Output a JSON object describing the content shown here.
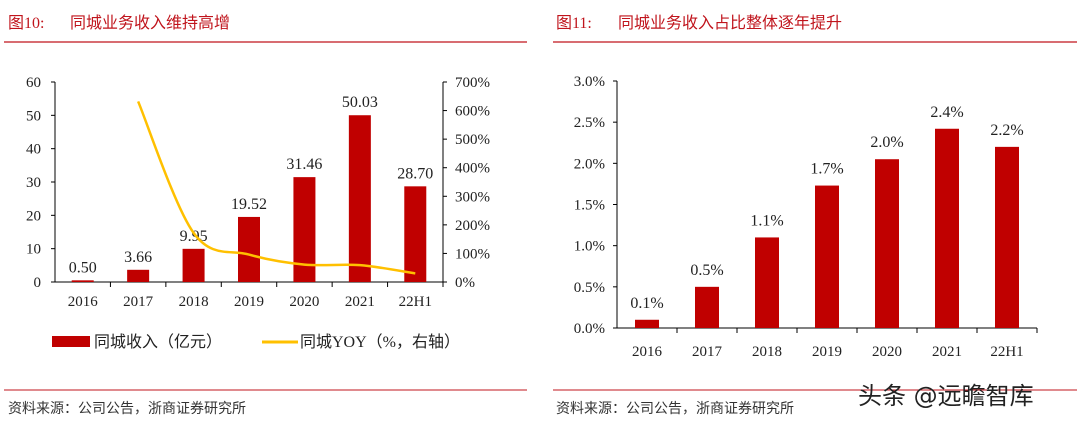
{
  "colors": {
    "bar": "#c00000",
    "line": "#ffc000",
    "accent": "#c0141c"
  },
  "left": {
    "title_num": "图10:",
    "title": "同城业务收入维持高增",
    "source": "资料来源：公司公告，浙商证券研究所"
  },
  "right": {
    "title_num": "图11:",
    "title": "同城业务收入占比整体逐年提升",
    "source": "资料来源：公司公告，浙商证券研究所"
  },
  "watermark": "头条 @远瞻智库",
  "chart_data": [
    {
      "type": "bar+line",
      "categories": [
        "2016",
        "2017",
        "2018",
        "2019",
        "2020",
        "2021",
        "22H1"
      ],
      "series": [
        {
          "name": "同城收入（亿元）",
          "type": "bar",
          "axis": "left",
          "values": [
            0.5,
            3.66,
            9.95,
            19.52,
            31.46,
            50.03,
            28.7
          ],
          "labels": [
            "0.50",
            "3.66",
            "9.95",
            "19.52",
            "31.46",
            "50.03",
            "28.70"
          ]
        },
        {
          "name": "同城YOY（%，右轴）",
          "type": "line",
          "axis": "right",
          "values": [
            null,
            632,
            172,
            96,
            61,
            59,
            30
          ]
        }
      ],
      "ylim": [
        0,
        60
      ],
      "yticks": [
        "0",
        "10",
        "20",
        "30",
        "40",
        "50",
        "60"
      ],
      "y2lim": [
        0,
        700
      ],
      "y2ticks": [
        "0%",
        "100%",
        "200%",
        "300%",
        "400%",
        "500%",
        "600%",
        "700%"
      ],
      "legend": "bottom",
      "grid": false
    },
    {
      "type": "bar",
      "categories": [
        "2016",
        "2017",
        "2018",
        "2019",
        "2020",
        "2021",
        "22H1"
      ],
      "values": [
        0.1,
        0.5,
        1.1,
        1.73,
        2.05,
        2.42,
        2.2
      ],
      "labels": [
        "0.1%",
        "0.5%",
        "1.1%",
        "1.7%",
        "2.0%",
        "2.4%",
        "2.2%"
      ],
      "ylim": [
        0,
        3.0
      ],
      "yticks": [
        "0.0%",
        "0.5%",
        "1.0%",
        "1.5%",
        "2.0%",
        "2.5%",
        "3.0%"
      ],
      "grid": false
    }
  ]
}
